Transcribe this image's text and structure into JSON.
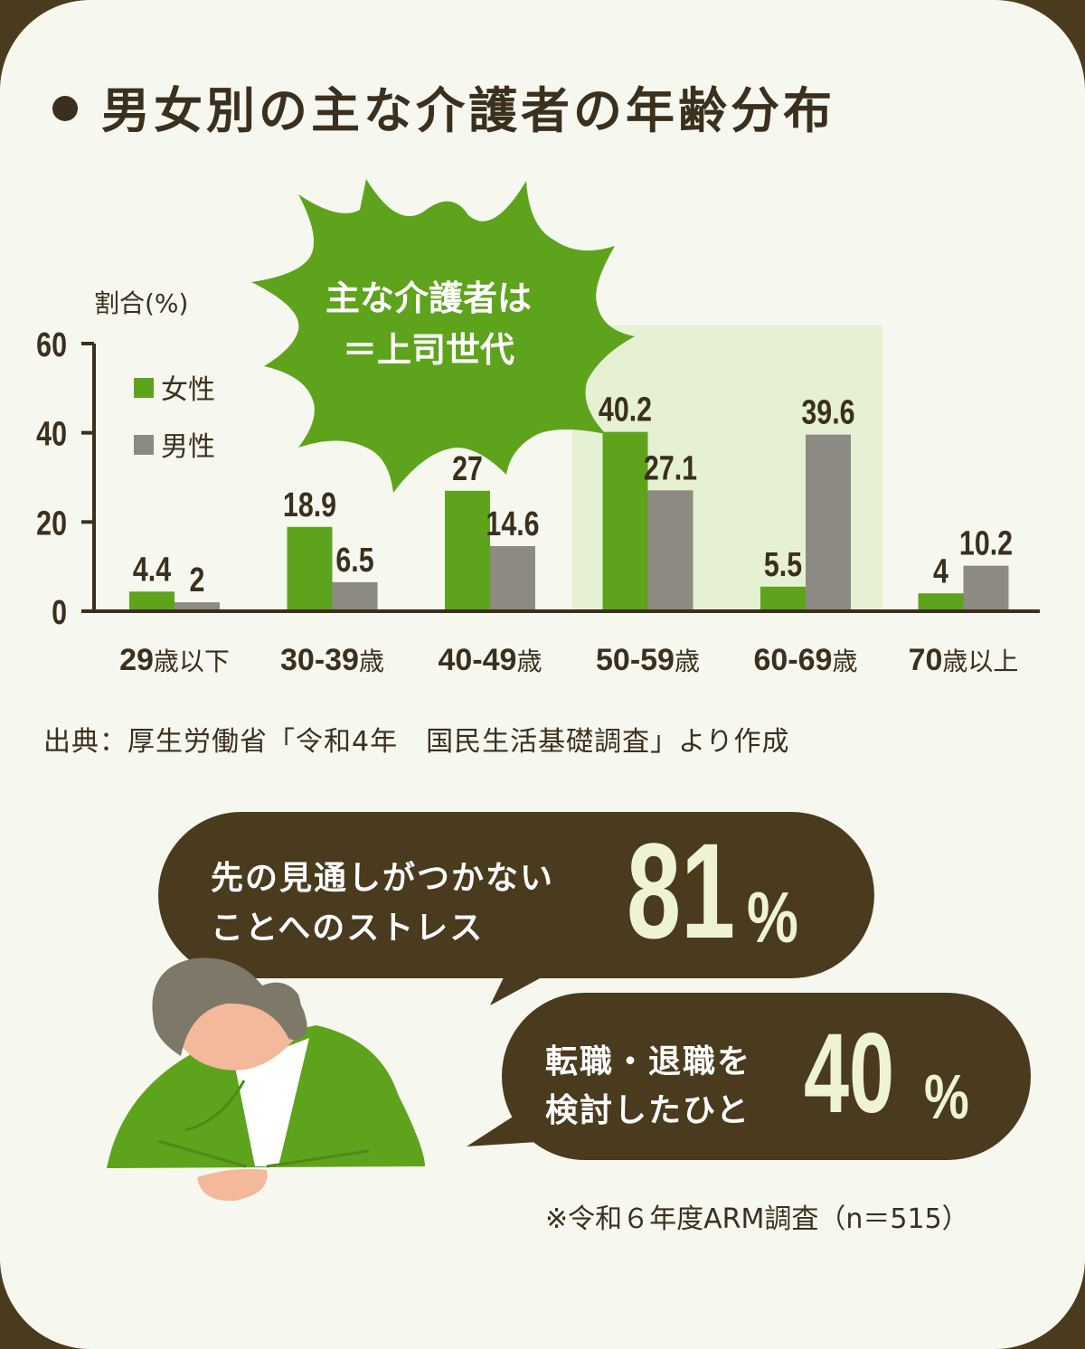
{
  "title": "男女別の主な介護者の年齢分布",
  "callout": {
    "line1": "主な介護者は",
    "line2": "＝上司世代"
  },
  "chart_data": {
    "type": "bar",
    "ylabel": "割合(%)",
    "ylim": [
      0,
      60
    ],
    "yticks": [
      0,
      20,
      40,
      60
    ],
    "categories": [
      {
        "num": "29",
        "suffix": "歳以下"
      },
      {
        "num": "30-39",
        "suffix": "歳"
      },
      {
        "num": "40-49",
        "suffix": "歳"
      },
      {
        "num": "50-59",
        "suffix": "歳"
      },
      {
        "num": "60-69",
        "suffix": "歳"
      },
      {
        "num": "70",
        "suffix": "歳以上"
      }
    ],
    "series": [
      {
        "name": "女性",
        "color": "#5ea31c",
        "values": [
          4.4,
          18.9,
          27,
          40.2,
          5.5,
          4
        ],
        "labels": [
          "4.4",
          "18.9",
          "27",
          "40.2",
          "5.5",
          "4"
        ]
      },
      {
        "name": "男性",
        "color": "#8d8a83",
        "values": [
          2,
          6.5,
          14.6,
          27.1,
          39.6,
          10.2
        ],
        "labels": [
          "2",
          "6.5",
          "14.6",
          "27.1",
          "39.6",
          "10.2"
        ]
      }
    ],
    "highlight_range": [
      "50-59",
      "60-69"
    ],
    "highlight_color": "#e6f0d2"
  },
  "source": "出典：厚生労働省「令和4年　国民生活基礎調査」より作成",
  "stats": [
    {
      "line1": "先の見通しがつかない",
      "line2": "ことへのストレス",
      "value": "81",
      "unit": "%"
    },
    {
      "line1": "転職・退職を",
      "line2": "検討したひと",
      "value": "40",
      "unit": "%"
    }
  ],
  "note": "※令和６年度ARM調査（n＝515）",
  "colors": {
    "accent_green": "#5ea31c",
    "dark_brown": "#4a3a1e",
    "male_gray": "#8d8a83",
    "bubble_text_light": "#eef3d6"
  }
}
